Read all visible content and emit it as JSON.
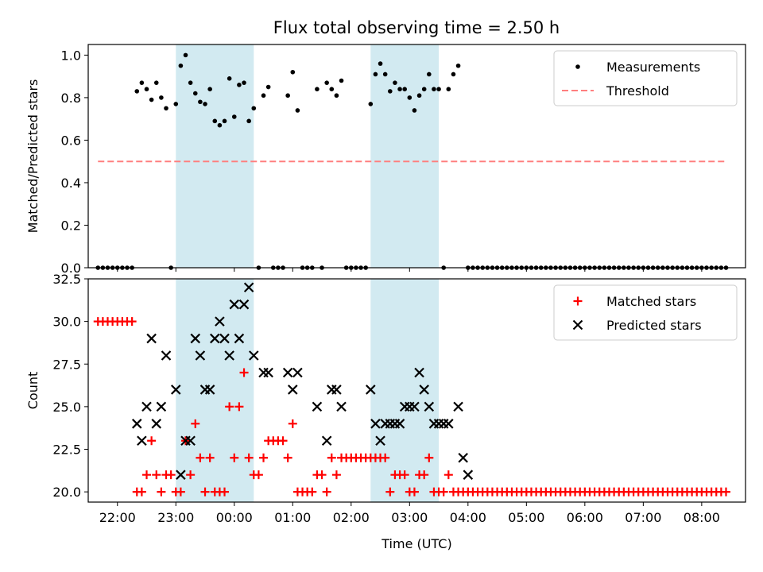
{
  "figure_title": "Flux total observing time = 2.50 h",
  "colors": {
    "measurement": "#000000",
    "threshold": "#ff7f7f",
    "matched": "#ff0000",
    "predicted": "#000000",
    "shade": "#add8e6"
  },
  "chart_data": [
    {
      "type": "scatter",
      "panel": "ratio",
      "xlabel": "",
      "ylabel": "Matched/Predicted stars",
      "xlim": [
        "21:30",
        "08:45"
      ],
      "ylim": [
        0,
        1.05
      ],
      "yticks": [
        "0.0",
        "0.2",
        "0.4",
        "0.6",
        "0.8",
        "1.0"
      ],
      "shaded_intervals": [
        [
          "23:00",
          "00:20"
        ],
        [
          "02:20",
          "03:30"
        ]
      ],
      "legend_position": "top-right",
      "series": [
        {
          "name": "Measurements",
          "marker": "dot",
          "color": "#000000",
          "points": [
            [
              "21:40",
              0
            ],
            [
              "21:45",
              0
            ],
            [
              "21:50",
              0
            ],
            [
              "21:55",
              0
            ],
            [
              "22:00",
              0
            ],
            [
              "22:05",
              0
            ],
            [
              "22:10",
              0
            ],
            [
              "22:15",
              0
            ],
            [
              "22:20",
              0.83
            ],
            [
              "22:25",
              0.87
            ],
            [
              "22:30",
              0.84
            ],
            [
              "22:35",
              0.79
            ],
            [
              "22:40",
              0.87
            ],
            [
              "22:45",
              0.8
            ],
            [
              "22:50",
              0.75
            ],
            [
              "22:55",
              0
            ],
            [
              "23:00",
              0.77
            ],
            [
              "23:05",
              0.95
            ],
            [
              "23:10",
              1.0
            ],
            [
              "23:15",
              0.87
            ],
            [
              "23:20",
              0.82
            ],
            [
              "23:25",
              0.78
            ],
            [
              "23:30",
              0.77
            ],
            [
              "23:35",
              0.84
            ],
            [
              "23:40",
              0.69
            ],
            [
              "23:45",
              0.67
            ],
            [
              "23:50",
              0.69
            ],
            [
              "23:55",
              0.89
            ],
            [
              "00:00",
              0.71
            ],
            [
              "00:05",
              0.86
            ],
            [
              "00:10",
              0.87
            ],
            [
              "00:15",
              0.69
            ],
            [
              "00:20",
              0.75
            ],
            [
              "00:25",
              0
            ],
            [
              "00:30",
              0.81
            ],
            [
              "00:35",
              0.85
            ],
            [
              "00:40",
              0
            ],
            [
              "00:45",
              0
            ],
            [
              "00:50",
              0
            ],
            [
              "00:55",
              0.81
            ],
            [
              "01:00",
              0.92
            ],
            [
              "01:05",
              0.74
            ],
            [
              "01:10",
              0
            ],
            [
              "01:15",
              0
            ],
            [
              "01:20",
              0
            ],
            [
              "01:25",
              0.84
            ],
            [
              "01:30",
              0
            ],
            [
              "01:35",
              0.87
            ],
            [
              "01:40",
              0.84
            ],
            [
              "01:45",
              0.81
            ],
            [
              "01:50",
              0.88
            ],
            [
              "01:55",
              0
            ],
            [
              "02:00",
              0
            ],
            [
              "02:05",
              0
            ],
            [
              "02:10",
              0
            ],
            [
              "02:15",
              0
            ],
            [
              "02:20",
              0.77
            ],
            [
              "02:25",
              0.91
            ],
            [
              "02:30",
              0.96
            ],
            [
              "02:35",
              0.91
            ],
            [
              "02:40",
              0.83
            ],
            [
              "02:45",
              0.87
            ],
            [
              "02:50",
              0.84
            ],
            [
              "02:55",
              0.84
            ],
            [
              "03:00",
              0.8
            ],
            [
              "03:05",
              0.74
            ],
            [
              "03:10",
              0.81
            ],
            [
              "03:15",
              0.84
            ],
            [
              "03:20",
              0.91
            ],
            [
              "03:25",
              0.84
            ],
            [
              "03:30",
              0.84
            ],
            [
              "03:35",
              0
            ],
            [
              "03:40",
              0.84
            ],
            [
              "03:45",
              0.91
            ],
            [
              "03:50",
              0.95
            ]
          ],
          "zeros_from": "04:00",
          "zeros_to": "08:25",
          "zeros_step_minutes": 5
        },
        {
          "name": "Threshold",
          "style": "dashed",
          "color": "#ff7f7f",
          "x": [
            "21:40",
            "08:25"
          ],
          "y": [
            0.5,
            0.5
          ]
        }
      ]
    },
    {
      "type": "scatter",
      "panel": "counts",
      "xlabel": "Time (UTC)",
      "ylabel": "Count",
      "xlim": [
        "21:30",
        "08:45"
      ],
      "ylim": [
        19.4,
        32.5
      ],
      "yticks": [
        "20.0",
        "22.5",
        "25.0",
        "27.5",
        "30.0",
        "32.5"
      ],
      "xticks": [
        "22:00",
        "23:00",
        "00:00",
        "01:00",
        "02:00",
        "03:00",
        "04:00",
        "05:00",
        "06:00",
        "07:00",
        "08:00"
      ],
      "shaded_intervals": [
        [
          "23:00",
          "00:20"
        ],
        [
          "02:20",
          "03:30"
        ]
      ],
      "legend_position": "top-right",
      "series": [
        {
          "name": "Matched stars",
          "marker": "plus",
          "color": "#ff0000",
          "points": [
            [
              "21:40",
              30
            ],
            [
              "21:45",
              30
            ],
            [
              "21:50",
              30
            ],
            [
              "21:55",
              30
            ],
            [
              "22:00",
              30
            ],
            [
              "22:05",
              30
            ],
            [
              "22:10",
              30
            ],
            [
              "22:15",
              30
            ],
            [
              "22:20",
              20
            ],
            [
              "22:25",
              20
            ],
            [
              "22:30",
              21
            ],
            [
              "22:35",
              23
            ],
            [
              "22:40",
              21
            ],
            [
              "22:45",
              20
            ],
            [
              "22:50",
              21
            ],
            [
              "22:55",
              21
            ],
            [
              "23:00",
              20
            ],
            [
              "23:05",
              20
            ],
            [
              "23:10",
              23
            ],
            [
              "23:15",
              21
            ],
            [
              "23:20",
              24
            ],
            [
              "23:25",
              22
            ],
            [
              "23:30",
              20
            ],
            [
              "23:35",
              22
            ],
            [
              "23:40",
              20
            ],
            [
              "23:45",
              20
            ],
            [
              "23:50",
              20
            ],
            [
              "23:55",
              25
            ],
            [
              "00:00",
              22
            ],
            [
              "00:05",
              25
            ],
            [
              "00:10",
              27
            ],
            [
              "00:15",
              22
            ],
            [
              "00:20",
              21
            ],
            [
              "00:25",
              21
            ],
            [
              "00:30",
              22
            ],
            [
              "00:35",
              23
            ],
            [
              "00:40",
              23
            ],
            [
              "00:45",
              23
            ],
            [
              "00:50",
              23
            ],
            [
              "00:55",
              22
            ],
            [
              "01:00",
              24
            ],
            [
              "01:05",
              20
            ],
            [
              "01:10",
              20
            ],
            [
              "01:15",
              20
            ],
            [
              "01:20",
              20
            ],
            [
              "01:25",
              21
            ],
            [
              "01:30",
              21
            ],
            [
              "01:35",
              20
            ],
            [
              "01:40",
              22
            ],
            [
              "01:45",
              21
            ],
            [
              "01:50",
              22
            ],
            [
              "01:55",
              22
            ],
            [
              "02:00",
              22
            ],
            [
              "02:05",
              22
            ],
            [
              "02:10",
              22
            ],
            [
              "02:15",
              22
            ],
            [
              "02:20",
              22
            ],
            [
              "02:25",
              22
            ],
            [
              "02:30",
              22
            ],
            [
              "02:35",
              22
            ],
            [
              "02:40",
              20
            ],
            [
              "02:45",
              21
            ],
            [
              "02:50",
              21
            ],
            [
              "02:55",
              21
            ],
            [
              "03:00",
              20
            ],
            [
              "03:05",
              20
            ],
            [
              "03:10",
              21
            ],
            [
              "03:15",
              21
            ],
            [
              "03:20",
              22
            ],
            [
              "03:25",
              20
            ],
            [
              "03:30",
              20
            ],
            [
              "03:35",
              20
            ],
            [
              "03:40",
              21
            ],
            [
              "03:45",
              20
            ],
            [
              "03:50",
              20
            ]
          ],
          "constant_from": "03:55",
          "constant_to": "08:25",
          "constant_value": 20,
          "constant_step_minutes": 5
        },
        {
          "name": "Predicted stars",
          "marker": "x",
          "color": "#000000",
          "points": [
            [
              "22:20",
              24
            ],
            [
              "22:25",
              23
            ],
            [
              "22:30",
              25
            ],
            [
              "22:35",
              29
            ],
            [
              "22:40",
              24
            ],
            [
              "22:45",
              25
            ],
            [
              "22:50",
              28
            ],
            [
              "23:00",
              26
            ],
            [
              "23:05",
              21
            ],
            [
              "23:10",
              23
            ],
            [
              "23:15",
              23
            ],
            [
              "23:20",
              29
            ],
            [
              "23:25",
              28
            ],
            [
              "23:30",
              26
            ],
            [
              "23:35",
              26
            ],
            [
              "23:40",
              29
            ],
            [
              "23:45",
              30
            ],
            [
              "23:50",
              29
            ],
            [
              "23:55",
              28
            ],
            [
              "00:00",
              31
            ],
            [
              "00:05",
              29
            ],
            [
              "00:10",
              31
            ],
            [
              "00:15",
              32
            ],
            [
              "00:20",
              28
            ],
            [
              "00:30",
              27
            ],
            [
              "00:35",
              27
            ],
            [
              "00:55",
              27
            ],
            [
              "01:00",
              26
            ],
            [
              "01:05",
              27
            ],
            [
              "01:25",
              25
            ],
            [
              "01:35",
              23
            ],
            [
              "01:40",
              26
            ],
            [
              "01:45",
              26
            ],
            [
              "01:50",
              25
            ],
            [
              "02:20",
              26
            ],
            [
              "02:25",
              24
            ],
            [
              "02:30",
              23
            ],
            [
              "02:35",
              24
            ],
            [
              "02:40",
              24
            ],
            [
              "02:45",
              24
            ],
            [
              "02:50",
              24
            ],
            [
              "02:55",
              25
            ],
            [
              "03:00",
              25
            ],
            [
              "03:05",
              25
            ],
            [
              "03:10",
              27
            ],
            [
              "03:15",
              26
            ],
            [
              "03:20",
              25
            ],
            [
              "03:25",
              24
            ],
            [
              "03:30",
              24
            ],
            [
              "03:35",
              24
            ],
            [
              "03:40",
              24
            ],
            [
              "03:50",
              25
            ],
            [
              "03:55",
              22
            ],
            [
              "04:00",
              21
            ]
          ]
        }
      ]
    }
  ]
}
